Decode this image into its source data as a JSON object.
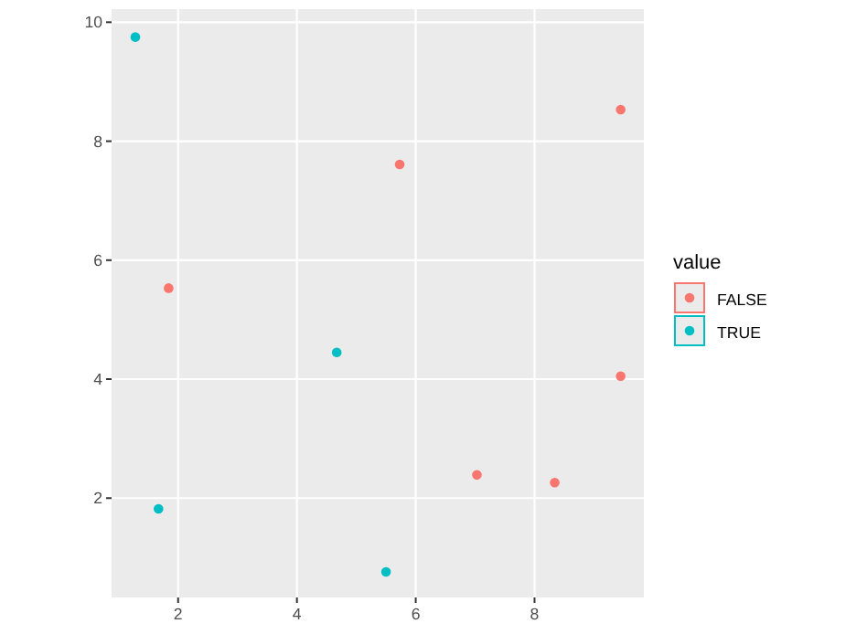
{
  "chart_data": {
    "type": "scatter",
    "legend_title": "value",
    "xlim": [
      0.88,
      9.84
    ],
    "ylim": [
      0.33,
      10.22
    ],
    "xticks": [
      2,
      4,
      6,
      8
    ],
    "yticks": [
      2,
      4,
      6,
      8,
      10
    ],
    "grid": true,
    "legend": "right",
    "marker": "circle",
    "series": [
      {
        "name": "FALSE",
        "color": "#f8766d",
        "x": [
          1.84,
          5.73,
          7.03,
          8.34,
          9.45,
          9.45
        ],
        "values": [
          5.53,
          7.61,
          2.39,
          2.26,
          8.53,
          4.05
        ]
      },
      {
        "name": "TRUE",
        "color": "#00bfc4",
        "x": [
          1.28,
          1.67,
          4.67,
          5.5
        ],
        "values": [
          9.75,
          1.82,
          4.45,
          0.76
        ]
      }
    ]
  }
}
